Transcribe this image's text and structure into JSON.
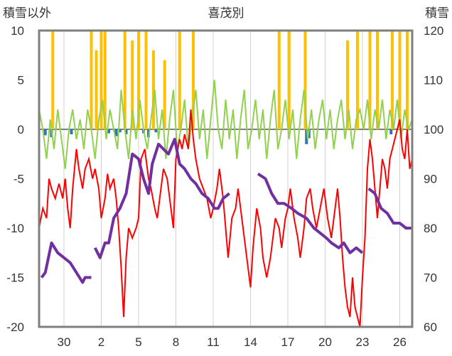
{
  "chart_data": {
    "type": "line",
    "title": "喜茂別",
    "left_axis_label": "積雪以外",
    "right_axis_label": "積雪",
    "left_axis": {
      "min": -20,
      "max": 10,
      "ticks": [
        "10",
        "5",
        "0",
        "-5",
        "-10",
        "-15",
        "-20"
      ]
    },
    "right_axis": {
      "min": 60,
      "max": 120,
      "ticks": [
        "120",
        "110",
        "100",
        "90",
        "80",
        "70",
        "60"
      ]
    },
    "x_tick_labels": [
      "30",
      "2",
      "5",
      "8",
      "11",
      "14",
      "17",
      "20",
      "23",
      "26"
    ],
    "x_tick_days": [
      2,
      5,
      8,
      11,
      14,
      17,
      20,
      23,
      26,
      29
    ],
    "x_range_days": [
      0,
      30
    ],
    "grid": "vertical",
    "colors": {
      "temperature": "#ff0000",
      "wind": "#92d050",
      "snowfall": "#ffc000",
      "precip_negative": "#2e75b6",
      "snow_depth": "#7030a0",
      "frame": "#7f7f7f",
      "grid": "#d0d0d0"
    },
    "series": {
      "temperature": [
        [
          0,
          -10
        ],
        [
          0.3,
          -8
        ],
        [
          0.6,
          -9
        ],
        [
          0.8,
          -5
        ],
        [
          1,
          -6
        ],
        [
          1.3,
          -7
        ],
        [
          1.6,
          -5.5
        ],
        [
          1.9,
          -7
        ],
        [
          2.1,
          -5
        ],
        [
          2.3,
          -8
        ],
        [
          2.5,
          -10
        ],
        [
          2.7,
          -6
        ],
        [
          3,
          -2
        ],
        [
          3.2,
          -4
        ],
        [
          3.5,
          -6
        ],
        [
          3.7,
          -4
        ],
        [
          4,
          -3
        ],
        [
          4.3,
          -5
        ],
        [
          4.5,
          -4
        ],
        [
          4.8,
          -6
        ],
        [
          5,
          -9
        ],
        [
          5.3,
          -7
        ],
        [
          5.5,
          -4.5
        ],
        [
          5.7,
          -6
        ],
        [
          6,
          -5
        ],
        [
          6.2,
          -7
        ],
        [
          6.4,
          -10
        ],
        [
          6.6,
          -14
        ],
        [
          6.8,
          -19
        ],
        [
          7,
          -13
        ],
        [
          7.2,
          -10
        ],
        [
          7.5,
          -11
        ],
        [
          7.8,
          -10
        ],
        [
          8,
          -9
        ],
        [
          8.2,
          -3
        ],
        [
          8.5,
          -2
        ],
        [
          8.8,
          -5
        ],
        [
          9,
          -6
        ],
        [
          9.3,
          -8
        ],
        [
          9.5,
          -9
        ],
        [
          9.8,
          -6
        ],
        [
          10,
          -4
        ],
        [
          10.3,
          -5
        ],
        [
          10.6,
          -8
        ],
        [
          10.8,
          -10
        ],
        [
          11,
          -3
        ],
        [
          11.3,
          -1
        ],
        [
          11.5,
          -2
        ],
        [
          11.7,
          -0.5
        ],
        [
          12,
          -2
        ],
        [
          12.2,
          2
        ],
        [
          12.4,
          -1
        ],
        [
          12.6,
          -3
        ],
        [
          12.9,
          -5
        ],
        [
          13.2,
          -6
        ],
        [
          13.5,
          -7
        ],
        [
          13.8,
          -9
        ],
        [
          14,
          -8
        ],
        [
          14.3,
          -6
        ],
        [
          14.5,
          -4
        ],
        [
          14.8,
          -7
        ],
        [
          15,
          -10
        ],
        [
          15.2,
          -13
        ],
        [
          15.5,
          -9
        ],
        [
          15.8,
          -8
        ],
        [
          16,
          -6
        ],
        [
          16.3,
          -9
        ],
        [
          16.6,
          -12
        ],
        [
          16.8,
          -14
        ],
        [
          17,
          -16
        ],
        [
          17.2,
          -12
        ],
        [
          17.5,
          -8
        ],
        [
          17.8,
          -10
        ],
        [
          18,
          -13
        ],
        [
          18.3,
          -15
        ],
        [
          18.6,
          -13
        ],
        [
          18.8,
          -11
        ],
        [
          19,
          -9
        ],
        [
          19.3,
          -10
        ],
        [
          19.5,
          -12
        ],
        [
          19.8,
          -9
        ],
        [
          20,
          -8
        ],
        [
          20.2,
          -6
        ],
        [
          20.5,
          -9
        ],
        [
          20.8,
          -11
        ],
        [
          21,
          -13
        ],
        [
          21.3,
          -10
        ],
        [
          21.5,
          -7
        ],
        [
          21.8,
          -6
        ],
        [
          22,
          -8
        ],
        [
          22.3,
          -10
        ],
        [
          22.6,
          -8
        ],
        [
          22.9,
          -6
        ],
        [
          23.2,
          -9
        ],
        [
          23.5,
          -11
        ],
        [
          23.8,
          -8
        ],
        [
          24,
          -6
        ],
        [
          24.2,
          -9
        ],
        [
          24.4,
          -13
        ],
        [
          24.6,
          -16
        ],
        [
          24.8,
          -18
        ],
        [
          25,
          -19
        ],
        [
          25.2,
          -15
        ],
        [
          25.4,
          -18
        ],
        [
          25.6,
          -19
        ],
        [
          25.8,
          -20
        ],
        [
          26,
          -15
        ],
        [
          26.2,
          -11
        ],
        [
          26.4,
          -4
        ],
        [
          26.6,
          -1
        ],
        [
          26.8,
          -3
        ],
        [
          27,
          -6
        ],
        [
          27.2,
          -9
        ],
        [
          27.4,
          -6
        ],
        [
          27.6,
          -3
        ],
        [
          27.8,
          -4
        ],
        [
          28,
          -6
        ],
        [
          28.2,
          -3
        ],
        [
          28.4,
          -2
        ],
        [
          28.6,
          -1
        ],
        [
          28.8,
          0
        ],
        [
          29,
          1
        ],
        [
          29.2,
          -2
        ],
        [
          29.4,
          -3
        ],
        [
          29.6,
          0
        ],
        [
          29.8,
          -4
        ],
        [
          30,
          -3
        ]
      ],
      "wind": [
        [
          0,
          2
        ],
        [
          0.3,
          0
        ],
        [
          0.6,
          -3
        ],
        [
          0.9,
          1
        ],
        [
          1.2,
          -2
        ],
        [
          1.5,
          2
        ],
        [
          1.8,
          -1
        ],
        [
          2.1,
          -4
        ],
        [
          2.4,
          0
        ],
        [
          2.7,
          2
        ],
        [
          3,
          -1
        ],
        [
          3.3,
          1
        ],
        [
          3.6,
          -2
        ],
        [
          3.9,
          2
        ],
        [
          4.2,
          0
        ],
        [
          4.5,
          -3
        ],
        [
          4.8,
          1
        ],
        [
          5.1,
          3
        ],
        [
          5.4,
          -1
        ],
        [
          5.7,
          2
        ],
        [
          6,
          0
        ],
        [
          6.3,
          -2
        ],
        [
          6.6,
          4
        ],
        [
          6.9,
          0
        ],
        [
          7.2,
          -3
        ],
        [
          7.5,
          2
        ],
        [
          7.8,
          -1
        ],
        [
          8.1,
          3
        ],
        [
          8.4,
          0
        ],
        [
          8.7,
          -2
        ],
        [
          9,
          1
        ],
        [
          9.3,
          4
        ],
        [
          9.6,
          -1
        ],
        [
          9.9,
          2
        ],
        [
          10.2,
          -3
        ],
        [
          10.5,
          1
        ],
        [
          10.8,
          4
        ],
        [
          11.1,
          -2
        ],
        [
          11.4,
          0
        ],
        [
          11.7,
          3
        ],
        [
          12,
          -2
        ],
        [
          12.3,
          1
        ],
        [
          12.6,
          4
        ],
        [
          12.9,
          -1
        ],
        [
          13.2,
          2
        ],
        [
          13.5,
          -3
        ],
        [
          13.8,
          1
        ],
        [
          14.1,
          5
        ],
        [
          14.4,
          0
        ],
        [
          14.7,
          -2
        ],
        [
          15,
          3
        ],
        [
          15.3,
          -1
        ],
        [
          15.6,
          2
        ],
        [
          15.9,
          -3
        ],
        [
          16.2,
          1
        ],
        [
          16.5,
          4
        ],
        [
          16.8,
          -2
        ],
        [
          17.1,
          0
        ],
        [
          17.4,
          3
        ],
        [
          17.7,
          -1
        ],
        [
          18,
          2
        ],
        [
          18.3,
          -3
        ],
        [
          18.6,
          1
        ],
        [
          18.9,
          4
        ],
        [
          19.2,
          -2
        ],
        [
          19.5,
          0
        ],
        [
          19.8,
          3
        ],
        [
          20.1,
          -1
        ],
        [
          20.4,
          2
        ],
        [
          20.7,
          -3
        ],
        [
          21,
          1
        ],
        [
          21.3,
          4
        ],
        [
          21.6,
          -1
        ],
        [
          21.9,
          2
        ],
        [
          22.2,
          -2
        ],
        [
          22.5,
          1
        ],
        [
          22.8,
          3
        ],
        [
          23.1,
          -1
        ],
        [
          23.4,
          2
        ],
        [
          23.7,
          -2
        ],
        [
          24,
          1
        ],
        [
          24.3,
          3
        ],
        [
          24.6,
          -1
        ],
        [
          24.9,
          2
        ],
        [
          25.2,
          -2
        ],
        [
          25.5,
          1
        ],
        [
          25.8,
          2
        ],
        [
          26.1,
          0
        ],
        [
          26.4,
          3
        ],
        [
          26.7,
          -1
        ],
        [
          27,
          2
        ],
        [
          27.3,
          0
        ],
        [
          27.6,
          3
        ],
        [
          27.9,
          -1
        ],
        [
          28.2,
          2
        ],
        [
          28.5,
          0
        ],
        [
          28.8,
          3
        ],
        [
          29.1,
          -1
        ],
        [
          29.4,
          2
        ],
        [
          29.7,
          0
        ],
        [
          30,
          1
        ]
      ],
      "snowfall_days": [
        1.1,
        4.2,
        4.6,
        5.0,
        5.3,
        6.9,
        7.5,
        8.0,
        8.6,
        9.2,
        10.1,
        11.3,
        12.4,
        19.3,
        20.1,
        21.4,
        24.8,
        25.6,
        26.6,
        27.2,
        28.4,
        29.0,
        29.6
      ],
      "snowfall_values": [
        14,
        12,
        8,
        10,
        11,
        16,
        9,
        12,
        13,
        8,
        7,
        15,
        10,
        14,
        16,
        10,
        9,
        12,
        15,
        13,
        10,
        16,
        12
      ],
      "precip_negative_days": [
        0.5,
        1.0,
        2.6,
        5.6,
        6.2,
        6.5,
        7.0,
        8.4,
        8.8,
        9.4,
        21.5,
        21.7,
        28.3
      ],
      "precip_negative_values": [
        -0.6,
        -0.8,
        -0.5,
        -0.4,
        -0.7,
        -0.3,
        -0.5,
        -0.4,
        -0.8,
        -0.3,
        -1.5,
        -0.9,
        -0.5
      ],
      "snow_depth_segments": [
        [
          [
            0.2,
            70
          ],
          [
            0.5,
            71
          ],
          [
            1.0,
            77
          ],
          [
            1.5,
            75
          ],
          [
            2.0,
            74
          ],
          [
            2.5,
            73
          ],
          [
            3.0,
            71
          ],
          [
            3.5,
            69
          ],
          [
            3.7,
            70
          ],
          [
            4.2,
            70
          ]
        ],
        [
          [
            4.5,
            76
          ],
          [
            4.9,
            74
          ],
          [
            5.3,
            77
          ],
          [
            5.6,
            77
          ],
          [
            6.0,
            82
          ],
          [
            6.5,
            84
          ],
          [
            7.0,
            87
          ],
          [
            7.5,
            95
          ],
          [
            8.0,
            94
          ],
          [
            8.4,
            90
          ],
          [
            8.8,
            87
          ],
          [
            9.1,
            93
          ],
          [
            9.6,
            97
          ],
          [
            10.0,
            96
          ],
          [
            10.4,
            95
          ],
          [
            10.9,
            98
          ],
          [
            11.3,
            93
          ],
          [
            11.7,
            92
          ],
          [
            12.2,
            90
          ],
          [
            12.6,
            89
          ],
          [
            13.1,
            87
          ],
          [
            13.6,
            86
          ],
          [
            14.1,
            84
          ],
          [
            14.4,
            84
          ],
          [
            14.8,
            86
          ],
          [
            15.3,
            87
          ]
        ],
        [
          [
            17.6,
            91
          ],
          [
            18.2,
            90
          ],
          [
            18.7,
            87
          ],
          [
            19.2,
            85
          ],
          [
            19.7,
            85
          ],
          [
            20.3,
            84
          ],
          [
            20.8,
            83
          ],
          [
            21.5,
            82
          ],
          [
            22.1,
            80
          ],
          [
            22.6,
            79
          ],
          [
            23.1,
            78
          ],
          [
            23.5,
            77
          ],
          [
            24.1,
            76
          ],
          [
            24.5,
            77
          ],
          [
            25.0,
            75
          ],
          [
            25.5,
            76
          ],
          [
            26.0,
            75
          ]
        ],
        [
          [
            26.5,
            88
          ],
          [
            27.0,
            87
          ],
          [
            27.5,
            84
          ],
          [
            28.0,
            83
          ],
          [
            28.5,
            81
          ],
          [
            29.0,
            81
          ],
          [
            29.5,
            80
          ],
          [
            30,
            80
          ]
        ]
      ]
    }
  }
}
